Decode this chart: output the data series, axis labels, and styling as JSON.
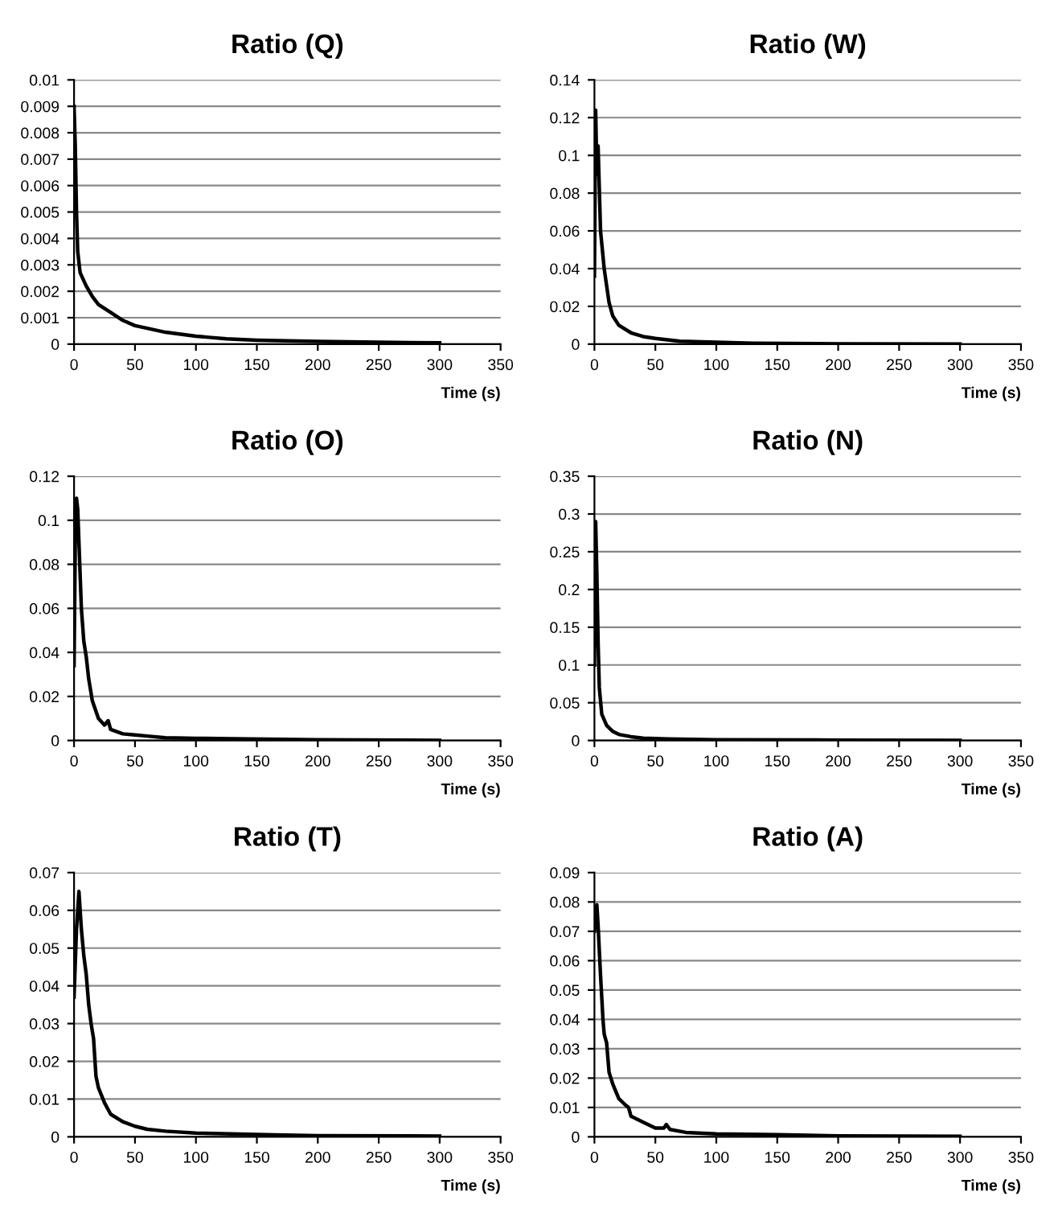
{
  "chart_data": [
    {
      "type": "line",
      "title": "Ratio (Q)",
      "xlabel": "Time (s)",
      "xlim": [
        0,
        350
      ],
      "xticks": [
        0,
        50,
        100,
        150,
        200,
        250,
        300,
        350
      ],
      "ylim": [
        0,
        0.01
      ],
      "yticks": [
        0,
        0.001,
        0.002,
        0.003,
        0.004,
        0.005,
        0.006,
        0.007,
        0.008,
        0.009,
        0.01
      ],
      "grid": "y",
      "marker": "none",
      "line_style": "solid",
      "series": [
        {
          "color": "#000000",
          "x": [
            0,
            1,
            2,
            3,
            5,
            10,
            15,
            20,
            30,
            40,
            50,
            60,
            75,
            100,
            125,
            150,
            200,
            250,
            300
          ],
          "values": [
            0.009,
            0.0075,
            0.005,
            0.0035,
            0.0027,
            0.0022,
            0.0018,
            0.0015,
            0.0012,
            0.0009,
            0.0007,
            0.0006,
            0.00045,
            0.0003,
            0.0002,
            0.00015,
            0.0001,
            7e-05,
            5e-05
          ]
        }
      ]
    },
    {
      "type": "line",
      "title": "Ratio (W)",
      "xlabel": "Time (s)",
      "xlim": [
        0,
        350
      ],
      "xticks": [
        0,
        50,
        100,
        150,
        200,
        250,
        300,
        350
      ],
      "ylim": [
        0,
        0.14
      ],
      "yticks": [
        0,
        0.02,
        0.04,
        0.06,
        0.08,
        0.1,
        0.12,
        0.14
      ],
      "grid": "y",
      "marker": "none",
      "line_style": "solid",
      "series": [
        {
          "color": "#000000",
          "x": [
            0,
            1,
            2,
            3,
            5,
            8,
            12,
            15,
            20,
            30,
            40,
            50,
            70,
            100,
            130,
            200,
            300
          ],
          "values": [
            0.036,
            0.124,
            0.09,
            0.105,
            0.06,
            0.04,
            0.022,
            0.015,
            0.01,
            0.006,
            0.004,
            0.003,
            0.0015,
            0.001,
            0.0005,
            0.0002,
            0.0001
          ]
        }
      ]
    },
    {
      "type": "line",
      "title": "Ratio (O)",
      "xlabel": "Time (s)",
      "xlim": [
        0,
        350
      ],
      "xticks": [
        0,
        50,
        100,
        150,
        200,
        250,
        300,
        350
      ],
      "ylim": [
        0,
        0.12
      ],
      "yticks": [
        0,
        0.02,
        0.04,
        0.06,
        0.08,
        0.1,
        0.12
      ],
      "grid": "y",
      "marker": "none",
      "line_style": "solid",
      "series": [
        {
          "color": "#000000",
          "x": [
            0,
            1,
            2,
            3,
            4,
            6,
            8,
            10,
            12,
            15,
            20,
            25,
            28,
            30,
            40,
            50,
            60,
            75,
            100,
            130,
            200,
            300
          ],
          "values": [
            0.034,
            0.09,
            0.11,
            0.105,
            0.09,
            0.06,
            0.045,
            0.038,
            0.028,
            0.018,
            0.01,
            0.007,
            0.009,
            0.005,
            0.003,
            0.0025,
            0.002,
            0.0012,
            0.001,
            0.0008,
            0.0003,
            0.0001
          ]
        }
      ]
    },
    {
      "type": "line",
      "title": "Ratio (N)",
      "xlabel": "Time (s)",
      "xlim": [
        0,
        350
      ],
      "xticks": [
        0,
        50,
        100,
        150,
        200,
        250,
        300,
        350
      ],
      "ylim": [
        0,
        0.35
      ],
      "yticks": [
        0,
        0.05,
        0.1,
        0.15,
        0.2,
        0.25,
        0.3,
        0.35
      ],
      "grid": "y",
      "marker": "none",
      "line_style": "solid",
      "series": [
        {
          "color": "#000000",
          "x": [
            0,
            1,
            2,
            3,
            4,
            6,
            10,
            15,
            20,
            30,
            40,
            60,
            100,
            200,
            300
          ],
          "values": [
            0.1,
            0.29,
            0.22,
            0.13,
            0.07,
            0.035,
            0.02,
            0.012,
            0.008,
            0.005,
            0.003,
            0.002,
            0.001,
            0.0005,
            0.0002
          ]
        }
      ]
    },
    {
      "type": "line",
      "title": "Ratio (T)",
      "xlabel": "Time (s)",
      "xlim": [
        0,
        350
      ],
      "xticks": [
        0,
        50,
        100,
        150,
        200,
        250,
        300,
        350
      ],
      "ylim": [
        0,
        0.07
      ],
      "yticks": [
        0,
        0.01,
        0.02,
        0.03,
        0.04,
        0.05,
        0.06,
        0.07
      ],
      "grid": "y",
      "marker": "none",
      "line_style": "solid",
      "series": [
        {
          "color": "#000000",
          "x": [
            0,
            2,
            4,
            6,
            8,
            10,
            12,
            14,
            16,
            18,
            20,
            25,
            30,
            40,
            50,
            60,
            75,
            100,
            165,
            200,
            300
          ],
          "values": [
            0.037,
            0.055,
            0.065,
            0.055,
            0.048,
            0.043,
            0.035,
            0.03,
            0.026,
            0.016,
            0.013,
            0.009,
            0.006,
            0.004,
            0.0028,
            0.002,
            0.0015,
            0.001,
            0.0005,
            0.0003,
            0.0002
          ]
        }
      ]
    },
    {
      "type": "line",
      "title": "Ratio (A)",
      "xlabel": "Time (s)",
      "xlim": [
        0,
        350
      ],
      "xticks": [
        0,
        50,
        100,
        150,
        200,
        250,
        300,
        350
      ],
      "ylim": [
        0,
        0.09
      ],
      "yticks": [
        0,
        0.01,
        0.02,
        0.03,
        0.04,
        0.05,
        0.06,
        0.07,
        0.08,
        0.09
      ],
      "grid": "y",
      "marker": "none",
      "line_style": "solid",
      "series": [
        {
          "color": "#000000",
          "x": [
            0,
            1,
            2,
            3,
            5,
            7,
            8,
            10,
            12,
            15,
            20,
            25,
            28,
            30,
            40,
            50,
            57,
            59,
            62,
            75,
            100,
            150,
            200,
            300
          ],
          "values": [
            0.07,
            0.074,
            0.079,
            0.072,
            0.055,
            0.04,
            0.035,
            0.032,
            0.022,
            0.018,
            0.013,
            0.011,
            0.01,
            0.007,
            0.005,
            0.003,
            0.003,
            0.0042,
            0.0025,
            0.0015,
            0.001,
            0.0007,
            0.0003,
            0.0002
          ]
        }
      ]
    }
  ]
}
